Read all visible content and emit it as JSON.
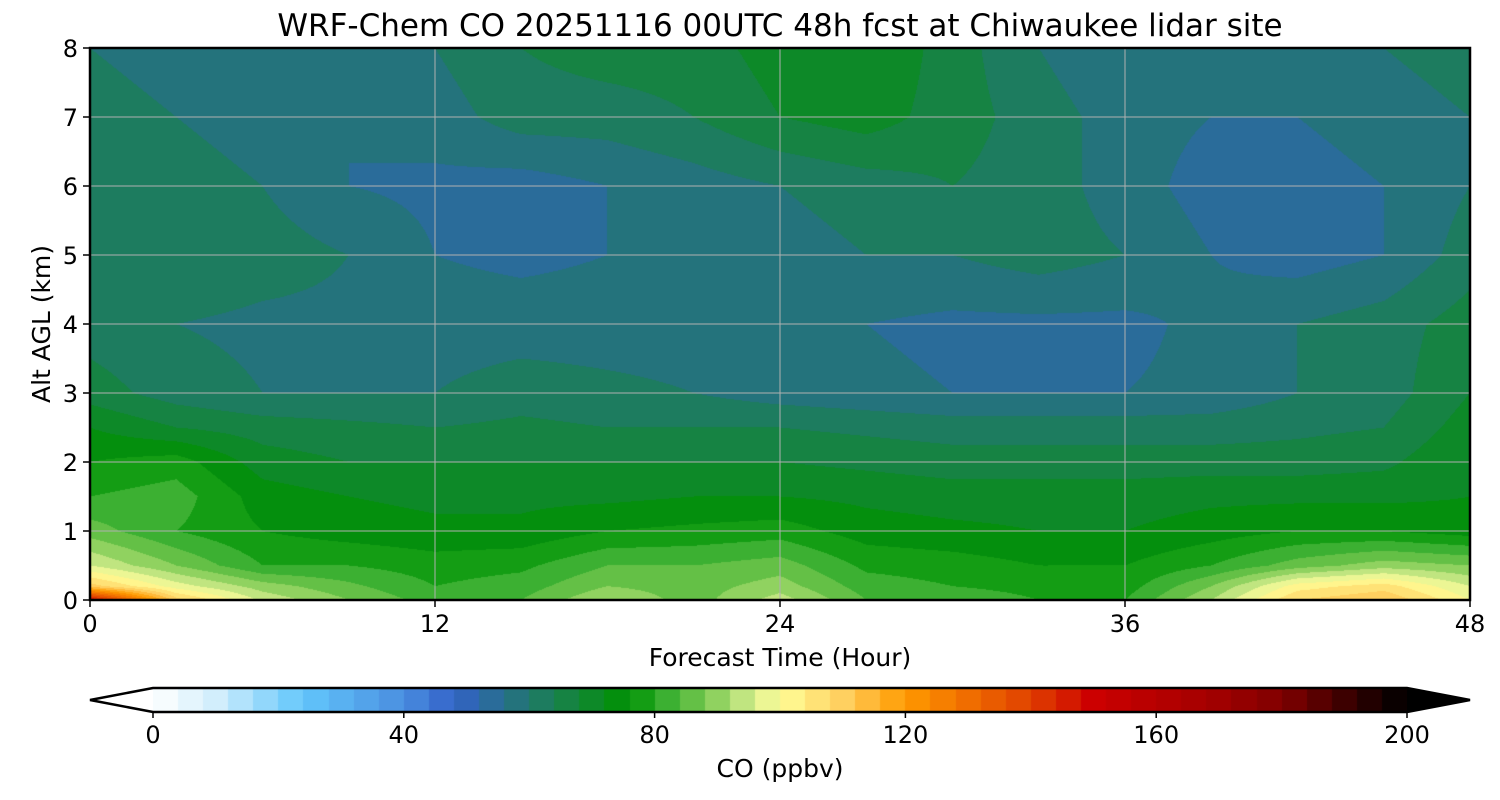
{
  "chart_data": {
    "type": "heatmap",
    "title": "WRF-Chem CO  20251116 00UTC 48h fcst at Chiwaukee lidar site",
    "xlabel": "Forecast Time (Hour)",
    "ylabel": "Alt AGL (km)",
    "xlim": [
      0,
      48
    ],
    "ylim": [
      0,
      8
    ],
    "xticks": [
      "0",
      "12",
      "24",
      "36",
      "48"
    ],
    "yticks": [
      "0",
      "1",
      "2",
      "3",
      "4",
      "5",
      "6",
      "7",
      "8"
    ],
    "grid": true,
    "x": [
      0,
      3,
      6,
      9,
      12,
      15,
      18,
      21,
      24,
      27,
      30,
      33,
      36,
      39,
      42,
      45,
      48
    ],
    "y": [
      0,
      0.2,
      0.5,
      1,
      1.5,
      2,
      2.5,
      3,
      4,
      5,
      6,
      7,
      8
    ],
    "z": [
      [
        150,
        110,
        95,
        88,
        82,
        84,
        92,
        86,
        94,
        84,
        82,
        80,
        80,
        92,
        108,
        112,
        100
      ],
      [
        110,
        98,
        90,
        85,
        80,
        82,
        88,
        86,
        90,
        82,
        80,
        79,
        78,
        88,
        102,
        106,
        96
      ],
      [
        96,
        88,
        80,
        80,
        78,
        79,
        84,
        84,
        86,
        79,
        78,
        76,
        76,
        80,
        86,
        90,
        88
      ],
      [
        86,
        80,
        76,
        74,
        73,
        73,
        76,
        77,
        78,
        74,
        73,
        72,
        72,
        74,
        76,
        76,
        74
      ],
      [
        80,
        82,
        74,
        72,
        71,
        71,
        71,
        72,
        72,
        71,
        70,
        70,
        70,
        71,
        71,
        71,
        72
      ],
      [
        76,
        78,
        70,
        68,
        68,
        68,
        68,
        68,
        68,
        67,
        66,
        66,
        66,
        66,
        66,
        67,
        72
      ],
      [
        72,
        68,
        66,
        65,
        64,
        65,
        64,
        64,
        64,
        63,
        62,
        62,
        62,
        62,
        63,
        64,
        70
      ],
      [
        66,
        62,
        60,
        60,
        60,
        62,
        61,
        60,
        58,
        57,
        56,
        56,
        56,
        57,
        60,
        62,
        68
      ],
      [
        62,
        60,
        59,
        59,
        58,
        58,
        58,
        58,
        58,
        56,
        55,
        55,
        55,
        57,
        60,
        62,
        66
      ],
      [
        62,
        64,
        62,
        60,
        56,
        55,
        56,
        58,
        58,
        60,
        60,
        62,
        60,
        56,
        54,
        56,
        62
      ],
      [
        64,
        62,
        60,
        56,
        55,
        54,
        56,
        58,
        60,
        62,
        64,
        62,
        58,
        54,
        54,
        56,
        60
      ],
      [
        62,
        60,
        58,
        56,
        58,
        62,
        62,
        64,
        68,
        70,
        66,
        62,
        58,
        56,
        56,
        58,
        60
      ],
      [
        60,
        58,
        56,
        58,
        60,
        64,
        66,
        66,
        70,
        72,
        66,
        60,
        56,
        57,
        58,
        60,
        62
      ]
    ],
    "colorbar": {
      "label": "CO  (ppbv)",
      "range": [
        0,
        200
      ],
      "step": 4,
      "ticks": [
        "0",
        "40",
        "80",
        "120",
        "160",
        "200"
      ],
      "extend": "both",
      "stops": [
        [
          0,
          "#ffffff"
        ],
        [
          10,
          "#d2eefc"
        ],
        [
          24,
          "#62c6fb"
        ],
        [
          40,
          "#4a8ee0"
        ],
        [
          48,
          "#3362c8"
        ],
        [
          56,
          "#276f8a"
        ],
        [
          64,
          "#1a8050"
        ],
        [
          76,
          "#009200"
        ],
        [
          80,
          "#28a828"
        ],
        [
          88,
          "#78c850"
        ],
        [
          96,
          "#d8ee90"
        ],
        [
          100,
          "#fffe98"
        ],
        [
          110,
          "#ffd060"
        ],
        [
          120,
          "#ff9a00"
        ],
        [
          140,
          "#e04000"
        ],
        [
          150,
          "#cc0000"
        ],
        [
          170,
          "#a00000"
        ],
        [
          180,
          "#800000"
        ],
        [
          196,
          "#140000"
        ],
        [
          200,
          "#000000"
        ]
      ]
    }
  }
}
